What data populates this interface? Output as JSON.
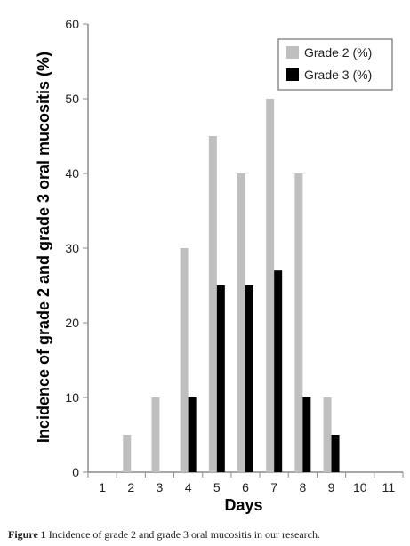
{
  "chart_data": {
    "type": "bar",
    "categories": [
      "1",
      "2",
      "3",
      "4",
      "5",
      "6",
      "7",
      "8",
      "9",
      "10",
      "11"
    ],
    "series": [
      {
        "name": "Grade 2 (%)",
        "color": "#bfbfbf",
        "values": [
          0,
          5,
          10,
          30,
          45,
          40,
          50,
          40,
          10,
          0,
          0
        ]
      },
      {
        "name": "Grade 3 (%)",
        "color": "#000000",
        "values": [
          0,
          0,
          0,
          10,
          25,
          25,
          27,
          10,
          5,
          0,
          0
        ]
      }
    ],
    "xlabel": "Days",
    "ylabel": "Incidence of grade 2 and grade 3 oral mucositis (%)",
    "ylim": [
      0,
      60
    ],
    "yticks": [
      0,
      10,
      20,
      30,
      40,
      50,
      60
    ],
    "grid": false,
    "legend_position": "top-right"
  },
  "caption": {
    "label": "Figure 1",
    "text": "Incidence of grade 2 and grade 3 oral mucositis in our research."
  }
}
